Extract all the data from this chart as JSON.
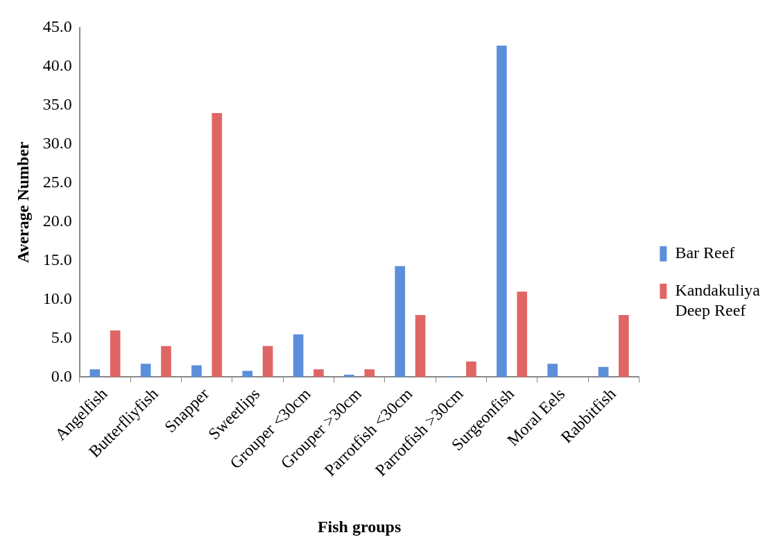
{
  "chart_data": {
    "type": "bar",
    "xlabel": "Fish groups",
    "ylabel": "Average Number",
    "categories": [
      "Angelfish",
      "Butterfliyfish",
      "Snapper",
      "Sweetlips",
      "Grouper <30cm",
      "Grouper >30cm",
      "Parrotfish <30cm",
      "Parrotfish >30cm",
      "Surgeonfish",
      "Moral Eels",
      "Rabbitfish"
    ],
    "series": [
      {
        "name": "Bar Reef",
        "color": "#5b8fd9",
        "values": [
          1.0,
          1.7,
          1.5,
          0.8,
          5.5,
          0.3,
          14.3,
          0.1,
          42.7,
          1.7,
          1.3
        ]
      },
      {
        "name": "Kandakuliya Deep Reef",
        "color": "#e06666",
        "values": [
          6.0,
          4.0,
          34.0,
          4.0,
          1.0,
          1.0,
          8.0,
          2.0,
          11.0,
          null,
          8.0
        ]
      }
    ],
    "ylim": [
      0,
      45
    ],
    "yticks": [
      {
        "value": 0,
        "label": "0.0"
      },
      {
        "value": 5,
        "label": "5.0"
      },
      {
        "value": 10,
        "label": "10.0"
      },
      {
        "value": 15,
        "label": "15.0"
      },
      {
        "value": 20,
        "label": "20.0"
      },
      {
        "value": 25,
        "label": "25.0"
      },
      {
        "value": 30,
        "label": "30.0"
      },
      {
        "value": 35,
        "label": "35.0"
      },
      {
        "value": 40,
        "label": "40.0"
      },
      {
        "value": 45,
        "label": "45.0"
      }
    ],
    "grid": false,
    "legend": "right"
  }
}
